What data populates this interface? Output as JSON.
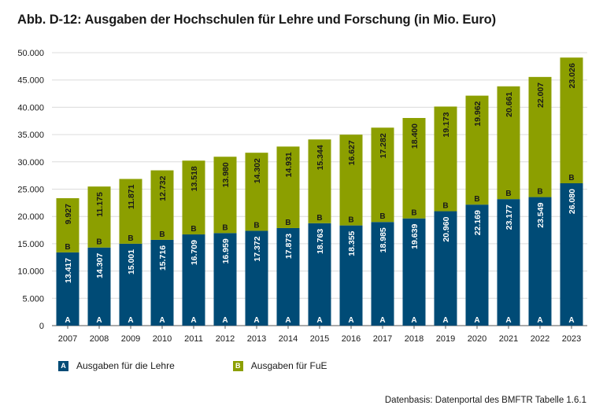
{
  "title": "Abb. D-12: Ausgaben der Hochschulen für Lehre und Forschung (in Mio. Euro)",
  "source": "Datenbasis: Datenportal des BMFTR Tabelle 1.6.1",
  "colors": {
    "lehre": "#004b76",
    "fue": "#8c9f00",
    "grid": "#dcdcdc",
    "axis": "#555555"
  },
  "chart_data": {
    "type": "bar",
    "stacked": true,
    "title": "Abb. D-12: Ausgaben der Hochschulen für Lehre und Forschung (in Mio. Euro)",
    "categories": [
      "2007",
      "2008",
      "2009",
      "2010",
      "2011",
      "2012",
      "2013",
      "2014",
      "2015",
      "2016",
      "2017",
      "2018",
      "2019",
      "2020",
      "2021",
      "2022",
      "2023"
    ],
    "ylim": [
      0,
      50000
    ],
    "yticks": [
      0,
      5000,
      10000,
      15000,
      20000,
      25000,
      30000,
      35000,
      40000,
      45000,
      50000
    ],
    "ytick_labels": [
      "0",
      "5.000",
      "10.000",
      "15.000",
      "20.000",
      "25.000",
      "30.000",
      "35.000",
      "40.000",
      "45.000",
      "50.000"
    ],
    "grid": true,
    "legend_position": "bottom-left",
    "series": [
      {
        "key": "lehre",
        "marker": "A",
        "name": "Ausgaben für die Lehre",
        "values": [
          13417,
          14307,
          15001,
          15716,
          16709,
          16959,
          17372,
          17873,
          18763,
          18355,
          18985,
          19639,
          20960,
          22169,
          23177,
          23549,
          26080
        ],
        "labels": [
          "13.417",
          "14.307",
          "15.001",
          "15.716",
          "16.709",
          "16.959",
          "17.372",
          "17.873",
          "18.763",
          "18.355",
          "18.985",
          "19.639",
          "20.960",
          "22.169",
          "23.177",
          "23.549",
          "26.080"
        ]
      },
      {
        "key": "fue",
        "marker": "B",
        "name": "Ausgaben für FuE",
        "values": [
          9927,
          11175,
          11871,
          12732,
          13518,
          13980,
          14302,
          14931,
          15344,
          16627,
          17282,
          18400,
          19173,
          19962,
          20661,
          22007,
          23026
        ],
        "labels": [
          "9.927",
          "11.175",
          "11.871",
          "12.732",
          "13.518",
          "13.980",
          "14.302",
          "14.931",
          "15.344",
          "16.627",
          "17.282",
          "18.400",
          "19.173",
          "19.962",
          "20.661",
          "22.007",
          "23.026"
        ]
      }
    ]
  }
}
